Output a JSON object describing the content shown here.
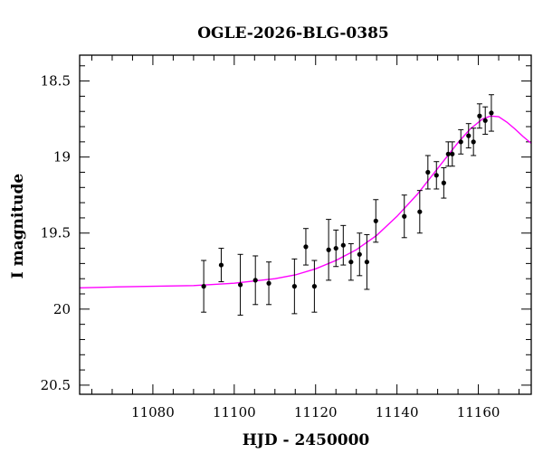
{
  "chart_data": {
    "type": "scatter",
    "title": "OGLE-2026-BLG-0385",
    "xlabel": "HJD - 2450000",
    "ylabel": "I magnitude",
    "xlim": [
      11062,
      11173
    ],
    "ylim": [
      20.56,
      18.33
    ],
    "y_inverted": true,
    "x_major_ticks": [
      11080,
      11100,
      11120,
      11140,
      11160
    ],
    "x_minor_step": 5,
    "y_major_ticks": [
      18.5,
      19,
      19.5,
      20,
      20.5
    ],
    "y_minor_step": 0.1,
    "x_tick_labels": [
      "11080",
      "11100",
      "11120",
      "11140",
      "11160"
    ],
    "y_tick_labels": [
      "18.5",
      "19",
      "19.5",
      "20",
      "20.5"
    ],
    "grid": false,
    "colors": {
      "points": "#000000",
      "model": "#ff00ff"
    },
    "series": [
      {
        "type": "scatter_errorbar",
        "points": [
          {
            "x": 11092.5,
            "y": 19.85,
            "err": 0.17
          },
          {
            "x": 11096.8,
            "y": 19.71,
            "err": 0.11
          },
          {
            "x": 11101.5,
            "y": 19.84,
            "err": 0.2
          },
          {
            "x": 11105.2,
            "y": 19.81,
            "err": 0.16
          },
          {
            "x": 11108.5,
            "y": 19.83,
            "err": 0.14
          },
          {
            "x": 11114.8,
            "y": 19.85,
            "err": 0.18
          },
          {
            "x": 11117.6,
            "y": 19.59,
            "err": 0.12
          },
          {
            "x": 11119.7,
            "y": 19.85,
            "err": 0.17
          },
          {
            "x": 11123.2,
            "y": 19.61,
            "err": 0.2
          },
          {
            "x": 11125.0,
            "y": 19.6,
            "err": 0.12
          },
          {
            "x": 11126.8,
            "y": 19.58,
            "err": 0.13
          },
          {
            "x": 11128.7,
            "y": 19.69,
            "err": 0.12
          },
          {
            "x": 11130.8,
            "y": 19.64,
            "err": 0.14
          },
          {
            "x": 11132.6,
            "y": 19.69,
            "err": 0.18
          },
          {
            "x": 11134.8,
            "y": 19.42,
            "err": 0.14
          },
          {
            "x": 11141.8,
            "y": 19.39,
            "err": 0.14
          },
          {
            "x": 11145.6,
            "y": 19.36,
            "err": 0.14
          },
          {
            "x": 11147.6,
            "y": 19.1,
            "err": 0.11
          },
          {
            "x": 11149.7,
            "y": 19.12,
            "err": 0.09
          },
          {
            "x": 11151.5,
            "y": 19.17,
            "err": 0.1
          },
          {
            "x": 11152.6,
            "y": 18.98,
            "err": 0.08
          },
          {
            "x": 11153.6,
            "y": 18.98,
            "err": 0.08
          },
          {
            "x": 11155.7,
            "y": 18.9,
            "err": 0.08
          },
          {
            "x": 11157.6,
            "y": 18.86,
            "err": 0.08
          },
          {
            "x": 11158.8,
            "y": 18.9,
            "err": 0.09
          },
          {
            "x": 11160.3,
            "y": 18.73,
            "err": 0.08
          },
          {
            "x": 11161.7,
            "y": 18.76,
            "err": 0.09
          },
          {
            "x": 11163.2,
            "y": 18.71,
            "err": 0.12
          }
        ]
      },
      {
        "type": "line",
        "x": [
          11062,
          11070,
          11080,
          11090,
          11100,
          11110,
          11115,
          11120,
          11125,
          11130,
          11135,
          11140,
          11145,
          11150,
          11155,
          11158,
          11161,
          11163,
          11165,
          11167,
          11169,
          11171,
          11173
        ],
        "y": [
          19.86,
          19.855,
          19.85,
          19.845,
          19.83,
          19.8,
          19.775,
          19.735,
          19.68,
          19.61,
          19.515,
          19.39,
          19.245,
          19.075,
          18.905,
          18.815,
          18.75,
          18.73,
          18.735,
          18.77,
          18.815,
          18.865,
          18.91
        ]
      }
    ]
  }
}
